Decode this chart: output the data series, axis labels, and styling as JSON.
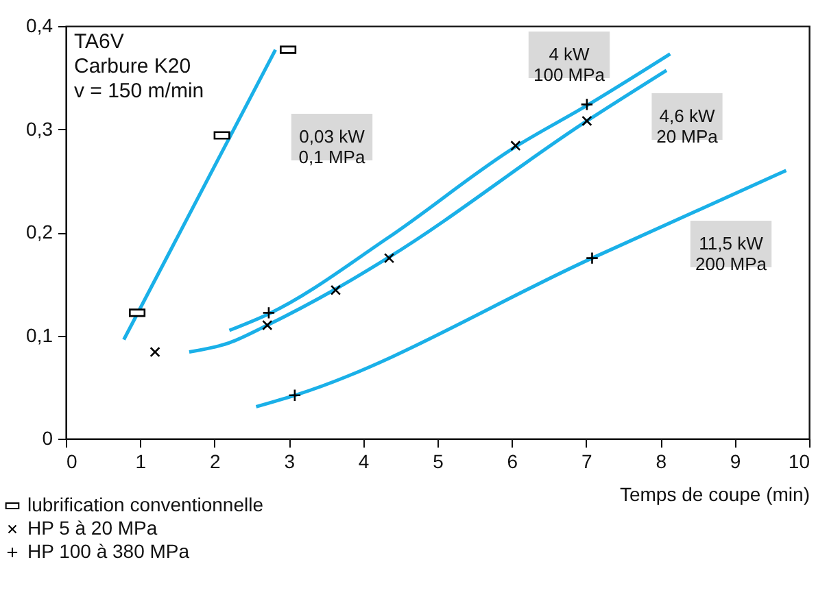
{
  "chart_data": {
    "type": "line",
    "xlabel": "Temps de coupe (min)",
    "xlim": [
      0,
      10
    ],
    "xticks": [
      0,
      1,
      2,
      3,
      4,
      5,
      6,
      7,
      8,
      9,
      10
    ],
    "ylim": [
      0,
      0.4
    ],
    "yticks": [
      0,
      {
        "value": 0.1,
        "label": "0,1"
      },
      {
        "value": 0.2,
        "label": "0,2"
      },
      {
        "value": 0.3,
        "label": "0,3"
      },
      {
        "value": 0.4,
        "label": "0,4"
      }
    ],
    "grid": false,
    "legend": "bottom left",
    "annotations": [
      "TA6V\nCarbure K20\nv = 150 m/min",
      "0,03 kW\n0,1 MPa",
      "4 kW\n100 MPa",
      "4,6 kW\n20 MPa",
      "11,5 kW\n200 MPa"
    ],
    "series": [
      {
        "color": "#1ab0e8",
        "x": [
          0.78,
          2.82
        ],
        "values": [
          0.096,
          0.377
        ]
      },
      {
        "color": "#1ab0e8",
        "x": [
          2.2,
          2.73,
          4.34,
          6.05,
          7.01,
          8.13
        ],
        "values": [
          0.105,
          0.121,
          0.195,
          0.283,
          0.323,
          0.373
        ]
      },
      {
        "color": "#1ab0e8",
        "x": [
          1.66,
          2.2,
          2.71,
          3.63,
          4.35,
          7.01,
          8.08
        ],
        "values": [
          0.084,
          0.093,
          0.11,
          0.145,
          0.176,
          0.308,
          0.357
        ]
      },
      {
        "color": "#1ab0e8",
        "x": [
          2.56,
          3.08,
          7.08,
          9.69
        ],
        "values": [
          0.031,
          0.042,
          0.175,
          0.26
        ]
      },
      {
        "type": "scatter",
        "name": "lubrification conventionnelle",
        "marker": "square",
        "color": "#000000",
        "x": [
          0.96,
          2.1,
          2.99
        ],
        "values": [
          0.122,
          0.294,
          0.377
        ]
      },
      {
        "type": "scatter",
        "name": "HP 5 à 20 MPa",
        "marker": "cross",
        "color": "#000000",
        "x": [
          1.2,
          2.71,
          3.63,
          4.35,
          6.05,
          7.01
        ],
        "values": [
          0.084,
          0.11,
          0.144,
          0.175,
          0.284,
          0.308
        ]
      },
      {
        "type": "scatter",
        "name": "HP 100 à 380 MPa",
        "marker": "plus",
        "color": "#000000",
        "x": [
          2.73,
          7.01,
          3.08,
          7.08
        ],
        "values": [
          0.122,
          0.324,
          0.042,
          0.175
        ]
      }
    ]
  }
}
